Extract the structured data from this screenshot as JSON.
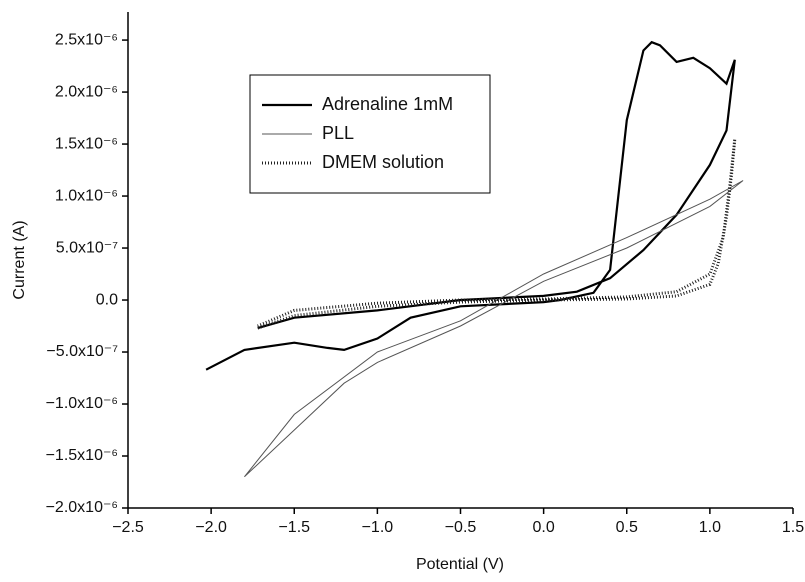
{
  "chart_data": {
    "type": "line",
    "xlabel": "Potential (V)",
    "ylabel": "Current (A)",
    "xlim": [
      -2.5,
      1.5
    ],
    "xticks": [
      {
        "value": -2.5,
        "label": "−2.5"
      },
      {
        "value": -2.0,
        "label": "−2.0"
      },
      {
        "value": -1.5,
        "label": "−1.5"
      },
      {
        "value": -1.0,
        "label": "−1.0"
      },
      {
        "value": -0.5,
        "label": "−0.5"
      },
      {
        "value": 0,
        "label": "0.0"
      },
      {
        "value": 0.5,
        "label": "0.5"
      },
      {
        "value": 1.0,
        "label": "1.0"
      },
      {
        "value": 1.5,
        "label": "1.5"
      }
    ],
    "ylim": [
      -2e-06,
      2.77e-06
    ],
    "yticks": [
      {
        "value": 2.5e-06,
        "label": "2.5x10⁻⁶"
      },
      {
        "value": 2e-06,
        "label": "2.0x10⁻⁶"
      },
      {
        "value": 1.5e-06,
        "label": "1.5x10⁻⁶"
      },
      {
        "value": 1e-06,
        "label": "1.0x10⁻⁶"
      },
      {
        "value": 5e-07,
        "label": "5.0x10⁻⁷"
      },
      {
        "value": 0,
        "label": "0.0"
      },
      {
        "value": -5e-07,
        "label": "−5.0x10⁻⁷"
      },
      {
        "value": -1e-06,
        "label": "−1.0x10⁻⁶"
      },
      {
        "value": -1.5e-06,
        "label": "−1.5x10⁻⁶"
      },
      {
        "value": -2e-06,
        "label": "−2.0x10⁻⁶"
      }
    ],
    "legend": "upper left",
    "series": [
      {
        "name": "Adrenaline 1mM",
        "color": "#000000",
        "style": "thick",
        "x": [
          -2.03,
          -1.8,
          -1.5,
          -1.3,
          -1.2,
          -1.0,
          -0.8,
          -0.5,
          0,
          0.1,
          0.3,
          0.4,
          0.5,
          0.6,
          0.65,
          0.7,
          0.8,
          0.9,
          1.0,
          1.1,
          1.15,
          1.15,
          1.1,
          1.0,
          0.8,
          0.6,
          0.4,
          0.2,
          0,
          -0.5,
          -1.0,
          -1.5,
          -1.72
        ],
        "values": [
          -6.7e-07,
          -4.8e-07,
          -4.1e-07,
          -4.6e-07,
          -4.8e-07,
          -3.7e-07,
          -1.7e-07,
          -6e-08,
          -2e-08,
          0,
          7e-08,
          2.9e-07,
          1.73e-06,
          2.4e-06,
          2.48e-06,
          2.45e-06,
          2.29e-06,
          2.33e-06,
          2.23e-06,
          2.08e-06,
          2.31e-06,
          2.31e-06,
          1.63e-06,
          1.3e-06,
          8.2e-07,
          4.8e-07,
          2.1e-07,
          8e-08,
          4e-08,
          0,
          -1e-07,
          -1.7e-07,
          -2.7e-07
        ]
      },
      {
        "name": "PLL",
        "color": "#555555",
        "style": "thin",
        "x": [
          -1.8,
          -1.5,
          -1.2,
          -1.0,
          -0.5,
          0,
          0.5,
          1.0,
          1.2,
          1.2,
          1.0,
          0.5,
          0,
          -0.5,
          -1.0,
          -1.5,
          -1.8
        ],
        "values": [
          -1.7e-06,
          -1.25e-06,
          -8e-07,
          -6e-07,
          -2.5e-07,
          1.8e-07,
          5e-07,
          9e-07,
          1.15e-06,
          1.15e-06,
          9.7e-07,
          6e-07,
          2.5e-07,
          -2e-07,
          -5e-07,
          -1.1e-06,
          -1.7e-06
        ]
      },
      {
        "name": "DMEM solution",
        "color": "#222222",
        "style": "dotted",
        "x": [
          -1.72,
          -1.5,
          -1.0,
          -0.5,
          0,
          0.5,
          0.8,
          1.0,
          1.05,
          1.1,
          1.13,
          1.15,
          1.12,
          1.08,
          1.0,
          0.8,
          0.5,
          0,
          -0.5,
          -1.0,
          -1.5,
          -1.72
        ],
        "values": [
          -2.7e-07,
          -1.5e-07,
          -6e-08,
          -2e-08,
          0,
          1e-08,
          4e-08,
          1.5e-07,
          3.5e-07,
          8e-07,
          1.2e-06,
          1.55e-06,
          1.1e-06,
          6e-07,
          2.5e-07,
          8e-08,
          3e-08,
          1e-08,
          0,
          -3e-08,
          -1e-07,
          -2.5e-07
        ]
      }
    ]
  }
}
